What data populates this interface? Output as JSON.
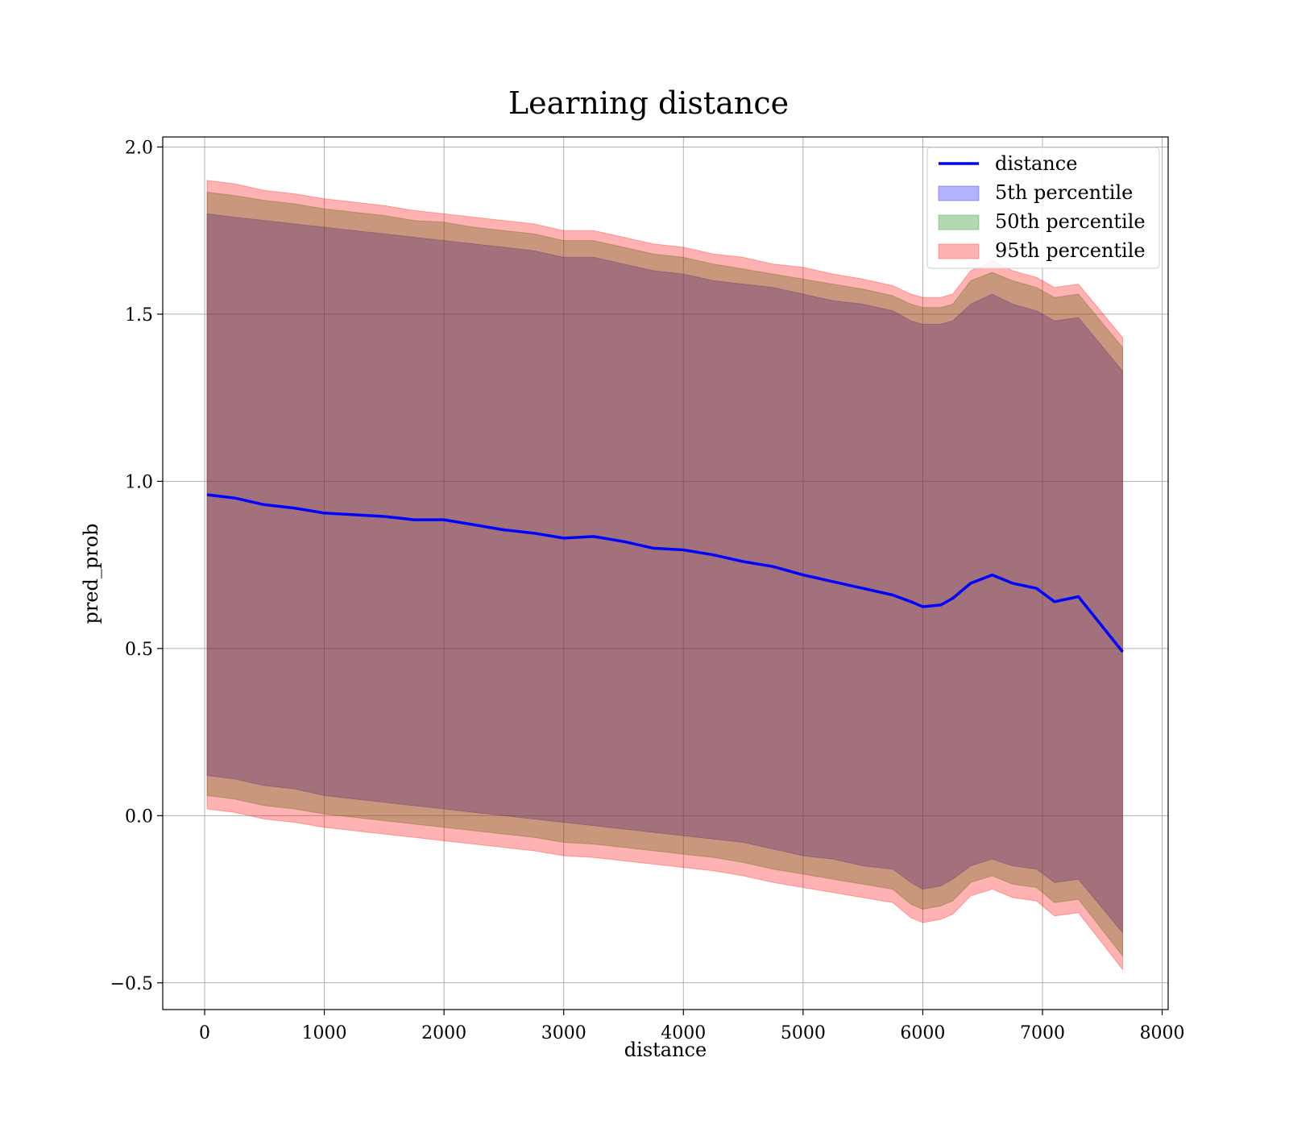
{
  "chart_data": {
    "type": "area",
    "title": "Learning distance",
    "xlabel": "distance",
    "ylabel": "pred_prob",
    "xlim": [
      -350,
      8050
    ],
    "ylim": [
      -0.58,
      2.03
    ],
    "xticks": [
      0,
      1000,
      2000,
      3000,
      4000,
      5000,
      6000,
      7000,
      8000
    ],
    "xtick_labels": [
      "0",
      "1000",
      "2000",
      "3000",
      "4000",
      "5000",
      "6000",
      "7000",
      "8000"
    ],
    "yticks": [
      -0.5,
      0.0,
      0.5,
      1.0,
      1.5,
      2.0
    ],
    "ytick_labels": [
      "−0.5",
      "0.0",
      "0.5",
      "1.0",
      "1.5",
      "2.0"
    ],
    "grid": true,
    "legend_position": "top-right",
    "x": [
      20,
      250,
      500,
      750,
      1000,
      1250,
      1500,
      1750,
      2000,
      2250,
      2500,
      2750,
      3000,
      3250,
      3500,
      3750,
      4000,
      4250,
      4500,
      4750,
      5000,
      5250,
      5500,
      5750,
      5900,
      6000,
      6150,
      6250,
      6400,
      6580,
      6750,
      6950,
      7100,
      7300,
      7670
    ],
    "series": [
      {
        "name": "distance",
        "kind": "line",
        "color": "#0000ff",
        "values": [
          0.96,
          0.95,
          0.93,
          0.92,
          0.905,
          0.9,
          0.895,
          0.885,
          0.885,
          0.87,
          0.855,
          0.845,
          0.83,
          0.835,
          0.82,
          0.8,
          0.795,
          0.78,
          0.76,
          0.745,
          0.72,
          0.7,
          0.68,
          0.66,
          0.64,
          0.625,
          0.63,
          0.65,
          0.695,
          0.72,
          0.695,
          0.68,
          0.64,
          0.655,
          0.49
        ]
      },
      {
        "name": "5th percentile",
        "kind": "band",
        "color": "#0000ff",
        "opacity": 0.3,
        "upper": [
          1.8,
          1.79,
          1.78,
          1.77,
          1.76,
          1.75,
          1.74,
          1.73,
          1.72,
          1.71,
          1.7,
          1.69,
          1.67,
          1.67,
          1.65,
          1.63,
          1.62,
          1.6,
          1.59,
          1.58,
          1.56,
          1.54,
          1.53,
          1.51,
          1.48,
          1.47,
          1.47,
          1.48,
          1.53,
          1.56,
          1.53,
          1.51,
          1.48,
          1.49,
          1.33
        ],
        "lower": [
          0.12,
          0.11,
          0.09,
          0.08,
          0.06,
          0.05,
          0.04,
          0.03,
          0.02,
          0.01,
          0.0,
          -0.01,
          -0.02,
          -0.03,
          -0.04,
          -0.05,
          -0.06,
          -0.07,
          -0.08,
          -0.1,
          -0.12,
          -0.13,
          -0.15,
          -0.16,
          -0.2,
          -0.22,
          -0.21,
          -0.19,
          -0.15,
          -0.13,
          -0.15,
          -0.16,
          -0.2,
          -0.19,
          -0.35
        ]
      },
      {
        "name": "50th percentile",
        "kind": "band",
        "color": "#008000",
        "opacity": 0.3,
        "upper": [
          1.865,
          1.855,
          1.84,
          1.83,
          1.815,
          1.805,
          1.795,
          1.78,
          1.775,
          1.76,
          1.75,
          1.74,
          1.72,
          1.72,
          1.7,
          1.68,
          1.67,
          1.65,
          1.635,
          1.62,
          1.605,
          1.59,
          1.575,
          1.555,
          1.53,
          1.52,
          1.52,
          1.53,
          1.6,
          1.625,
          1.6,
          1.58,
          1.55,
          1.56,
          1.4
        ],
        "lower": [
          0.06,
          0.05,
          0.03,
          0.02,
          0.005,
          -0.005,
          -0.015,
          -0.025,
          -0.035,
          -0.045,
          -0.055,
          -0.065,
          -0.08,
          -0.085,
          -0.095,
          -0.105,
          -0.115,
          -0.125,
          -0.14,
          -0.16,
          -0.175,
          -0.19,
          -0.205,
          -0.22,
          -0.265,
          -0.28,
          -0.27,
          -0.255,
          -0.2,
          -0.18,
          -0.205,
          -0.215,
          -0.26,
          -0.25,
          -0.42
        ]
      },
      {
        "name": "95th percentile",
        "kind": "band",
        "color": "#ff0000",
        "opacity": 0.3,
        "upper": [
          1.9,
          1.89,
          1.87,
          1.86,
          1.845,
          1.835,
          1.825,
          1.81,
          1.8,
          1.79,
          1.78,
          1.77,
          1.75,
          1.75,
          1.73,
          1.71,
          1.7,
          1.68,
          1.67,
          1.65,
          1.64,
          1.62,
          1.605,
          1.585,
          1.56,
          1.55,
          1.55,
          1.56,
          1.63,
          1.66,
          1.63,
          1.61,
          1.58,
          1.59,
          1.43
        ],
        "lower": [
          0.02,
          0.01,
          -0.01,
          -0.02,
          -0.035,
          -0.045,
          -0.055,
          -0.065,
          -0.075,
          -0.085,
          -0.095,
          -0.105,
          -0.12,
          -0.125,
          -0.135,
          -0.145,
          -0.155,
          -0.165,
          -0.18,
          -0.2,
          -0.215,
          -0.23,
          -0.245,
          -0.26,
          -0.305,
          -0.32,
          -0.31,
          -0.295,
          -0.24,
          -0.22,
          -0.245,
          -0.255,
          -0.3,
          -0.29,
          -0.46
        ]
      }
    ]
  }
}
